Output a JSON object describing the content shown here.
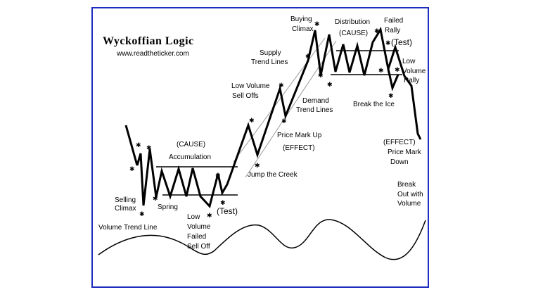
{
  "title": "Wyckoffian Logic",
  "url": "www.readtheticker.com",
  "labels": {
    "selling_climax": [
      "Selling",
      "Climax"
    ],
    "spring": "Spring",
    "cause_accumulation": [
      "(CAUSE)",
      "Accumulation"
    ],
    "low_volume_failed_sell_off": [
      "Low",
      "Volume",
      "Failed",
      "Sell Off"
    ],
    "test_lower": "(Test)",
    "jump_the_creek": "Jump the Creek",
    "volume_trend_line": "Volume Trend Line",
    "low_volume_sell_offs": [
      "Low Volume",
      "Sell Offs"
    ],
    "supply_trend_lines": [
      "Supply",
      "Trend Lines"
    ],
    "price_mark_up": [
      "Price Mark Up",
      "(EFFECT)"
    ],
    "demand_trend_lines": [
      "Demand",
      "Trend Lines"
    ],
    "buying_climax": [
      "Buying",
      "Climax"
    ],
    "distribution_cause": [
      "Distribution",
      "(CAUSE)"
    ],
    "failed_rally": [
      "Failed",
      "Rally"
    ],
    "test_upper": "(Test)",
    "low_volume_rally": [
      "Low",
      "Volume",
      "Rally"
    ],
    "break_the_ice": "Break the Ice",
    "price_mark_down": [
      "(EFFECT)",
      "Price Mark",
      "Down"
    ],
    "break_out_with_volume": [
      "Break",
      "Out with",
      "Volume"
    ]
  },
  "colors": {
    "frame": "#1f2dbf",
    "line": "#000000",
    "trend": "#9a9a9a"
  }
}
